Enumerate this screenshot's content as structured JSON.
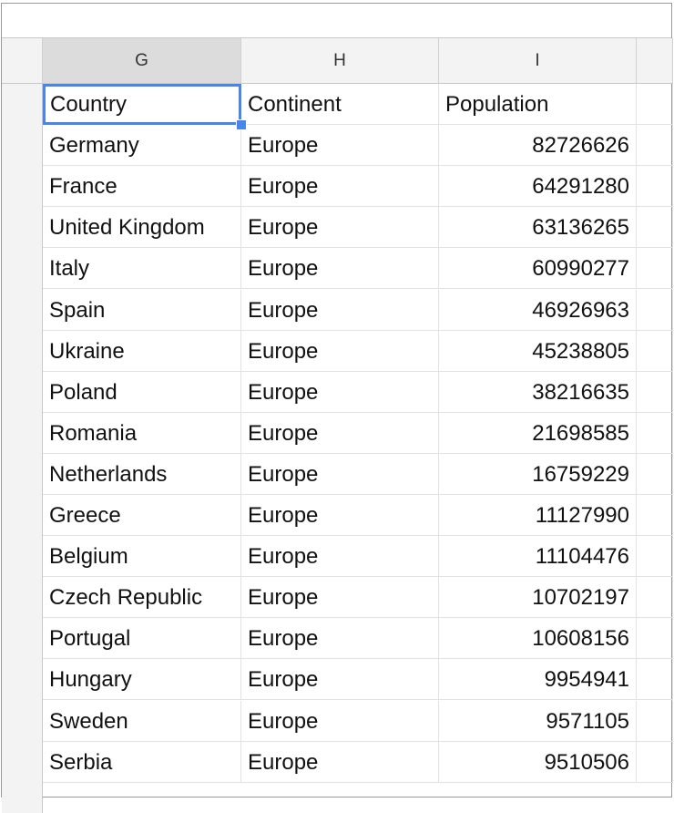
{
  "columns": [
    "G",
    "H",
    "I",
    ""
  ],
  "selected_column": "G",
  "accent_color": "#4a86e8",
  "rows": [
    [
      "Country",
      "Continent",
      "Population"
    ],
    [
      "Germany",
      "Europe",
      "82726626"
    ],
    [
      "France",
      "Europe",
      "64291280"
    ],
    [
      "United Kingdom",
      "Europe",
      "63136265"
    ],
    [
      "Italy",
      "Europe",
      "60990277"
    ],
    [
      "Spain",
      "Europe",
      "46926963"
    ],
    [
      "Ukraine",
      "Europe",
      "45238805"
    ],
    [
      "Poland",
      "Europe",
      "38216635"
    ],
    [
      "Romania",
      "Europe",
      "21698585"
    ],
    [
      "Netherlands",
      "Europe",
      "16759229"
    ],
    [
      "Greece",
      "Europe",
      "11127990"
    ],
    [
      "Belgium",
      "Europe",
      "11104476"
    ],
    [
      "Czech Republic",
      "Europe",
      "10702197"
    ],
    [
      "Portugal",
      "Europe",
      "10608156"
    ],
    [
      "Hungary",
      "Europe",
      "9954941"
    ],
    [
      "Sweden",
      "Europe",
      "9571105"
    ],
    [
      "Serbia",
      "Europe",
      "9510506"
    ]
  ]
}
